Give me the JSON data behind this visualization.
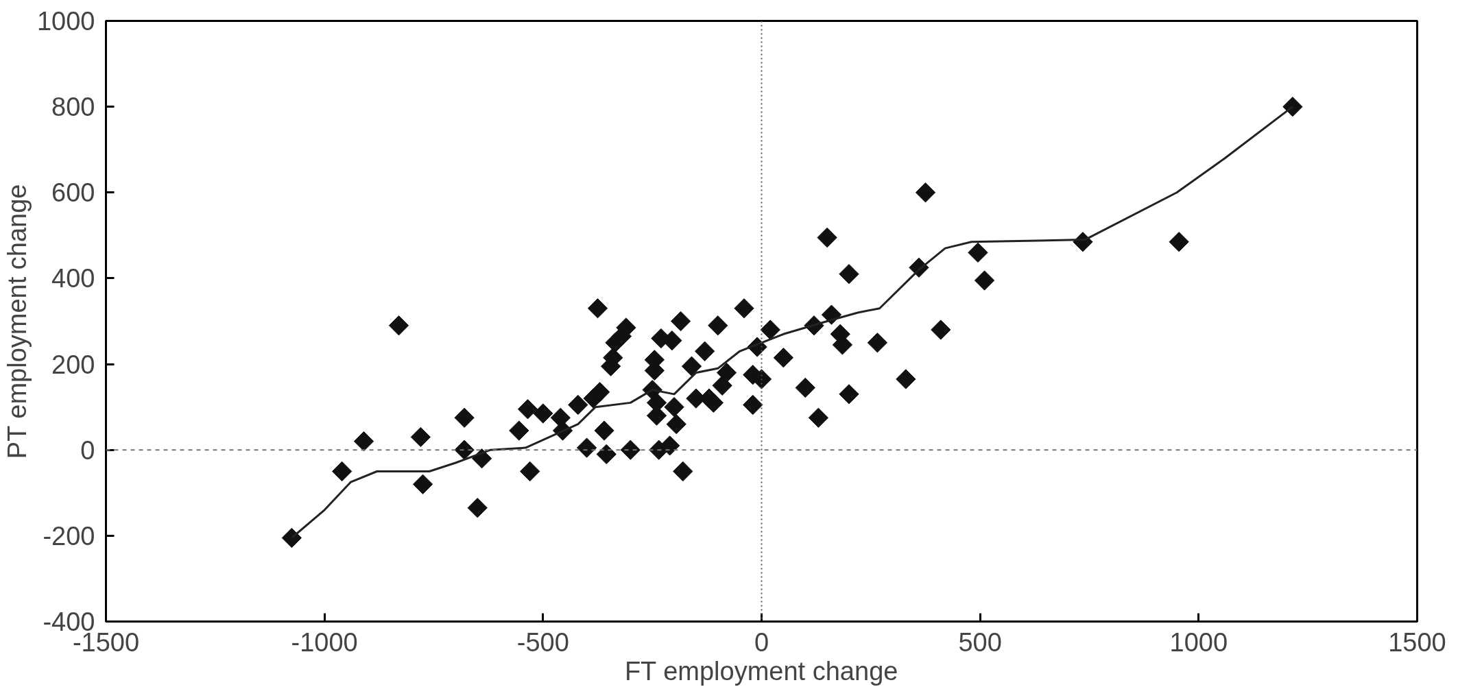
{
  "chart_data": {
    "type": "scatter",
    "xlabel": "FT employment change",
    "ylabel": "PT employment change",
    "xlim": [
      -1500,
      1500
    ],
    "ylim": [
      -400,
      1000
    ],
    "xticks": [
      -1500,
      -1000,
      -500,
      0,
      500,
      1000,
      1500
    ],
    "yticks": [
      -400,
      -200,
      0,
      200,
      400,
      600,
      800,
      1000
    ],
    "grid": false,
    "marker": "diamond",
    "ref_lines": [
      {
        "axis": "x",
        "value": 0,
        "line_style": "dotted",
        "color": "#555555"
      },
      {
        "axis": "y",
        "value": 0,
        "line_style": "dashed",
        "color": "#777777"
      }
    ],
    "series": [
      {
        "color": "#111111",
        "x": [
          -1075,
          -960,
          -910,
          -830,
          -780,
          -775,
          -680,
          -680,
          -640,
          -650,
          -555,
          -535,
          -530,
          -500,
          -460,
          -455,
          -420,
          -400,
          -385,
          -375,
          -370,
          -360,
          -355,
          -345,
          -340,
          -335,
          -320,
          -310,
          -300,
          -250,
          -245,
          -245,
          -240,
          -240,
          -235,
          -230,
          -210,
          -205,
          -200,
          -195,
          -185,
          -180,
          -160,
          -150,
          -130,
          -120,
          -110,
          -100,
          -90,
          -80,
          -40,
          -20,
          -20,
          -10,
          0,
          20,
          50,
          100,
          120,
          130,
          150,
          160,
          180,
          185,
          200,
          200,
          265,
          330,
          360,
          375,
          410,
          495,
          510,
          735,
          955,
          1215
        ],
        "values": [
          -205,
          -50,
          20,
          290,
          30,
          -80,
          75,
          0,
          -20,
          -135,
          45,
          95,
          -50,
          85,
          75,
          45,
          105,
          5,
          120,
          330,
          135,
          45,
          -10,
          195,
          215,
          250,
          265,
          285,
          0,
          140,
          210,
          185,
          80,
          110,
          0,
          260,
          10,
          255,
          100,
          60,
          300,
          -50,
          195,
          120,
          230,
          120,
          110,
          290,
          150,
          180,
          330,
          175,
          105,
          240,
          165,
          280,
          215,
          145,
          290,
          75,
          495,
          315,
          270,
          245,
          130,
          410,
          250,
          165,
          425,
          600,
          280,
          460,
          395,
          485,
          485,
          800
        ]
      },
      {
        "type": "line",
        "color": "#222222",
        "line_style": "solid",
        "marker": "none",
        "x": [
          -1075,
          -1000,
          -940,
          -880,
          -760,
          -700,
          -620,
          -540,
          -420,
          -380,
          -300,
          -250,
          -200,
          -150,
          -100,
          -50,
          0,
          50,
          150,
          220,
          270,
          360,
          420,
          480,
          740,
          950,
          1060,
          1215
        ],
        "values": [
          -205,
          -140,
          -75,
          -50,
          -50,
          -30,
          0,
          5,
          60,
          100,
          110,
          140,
          130,
          180,
          190,
          230,
          250,
          270,
          300,
          320,
          330,
          420,
          470,
          485,
          490,
          600,
          680,
          800
        ]
      }
    ]
  }
}
